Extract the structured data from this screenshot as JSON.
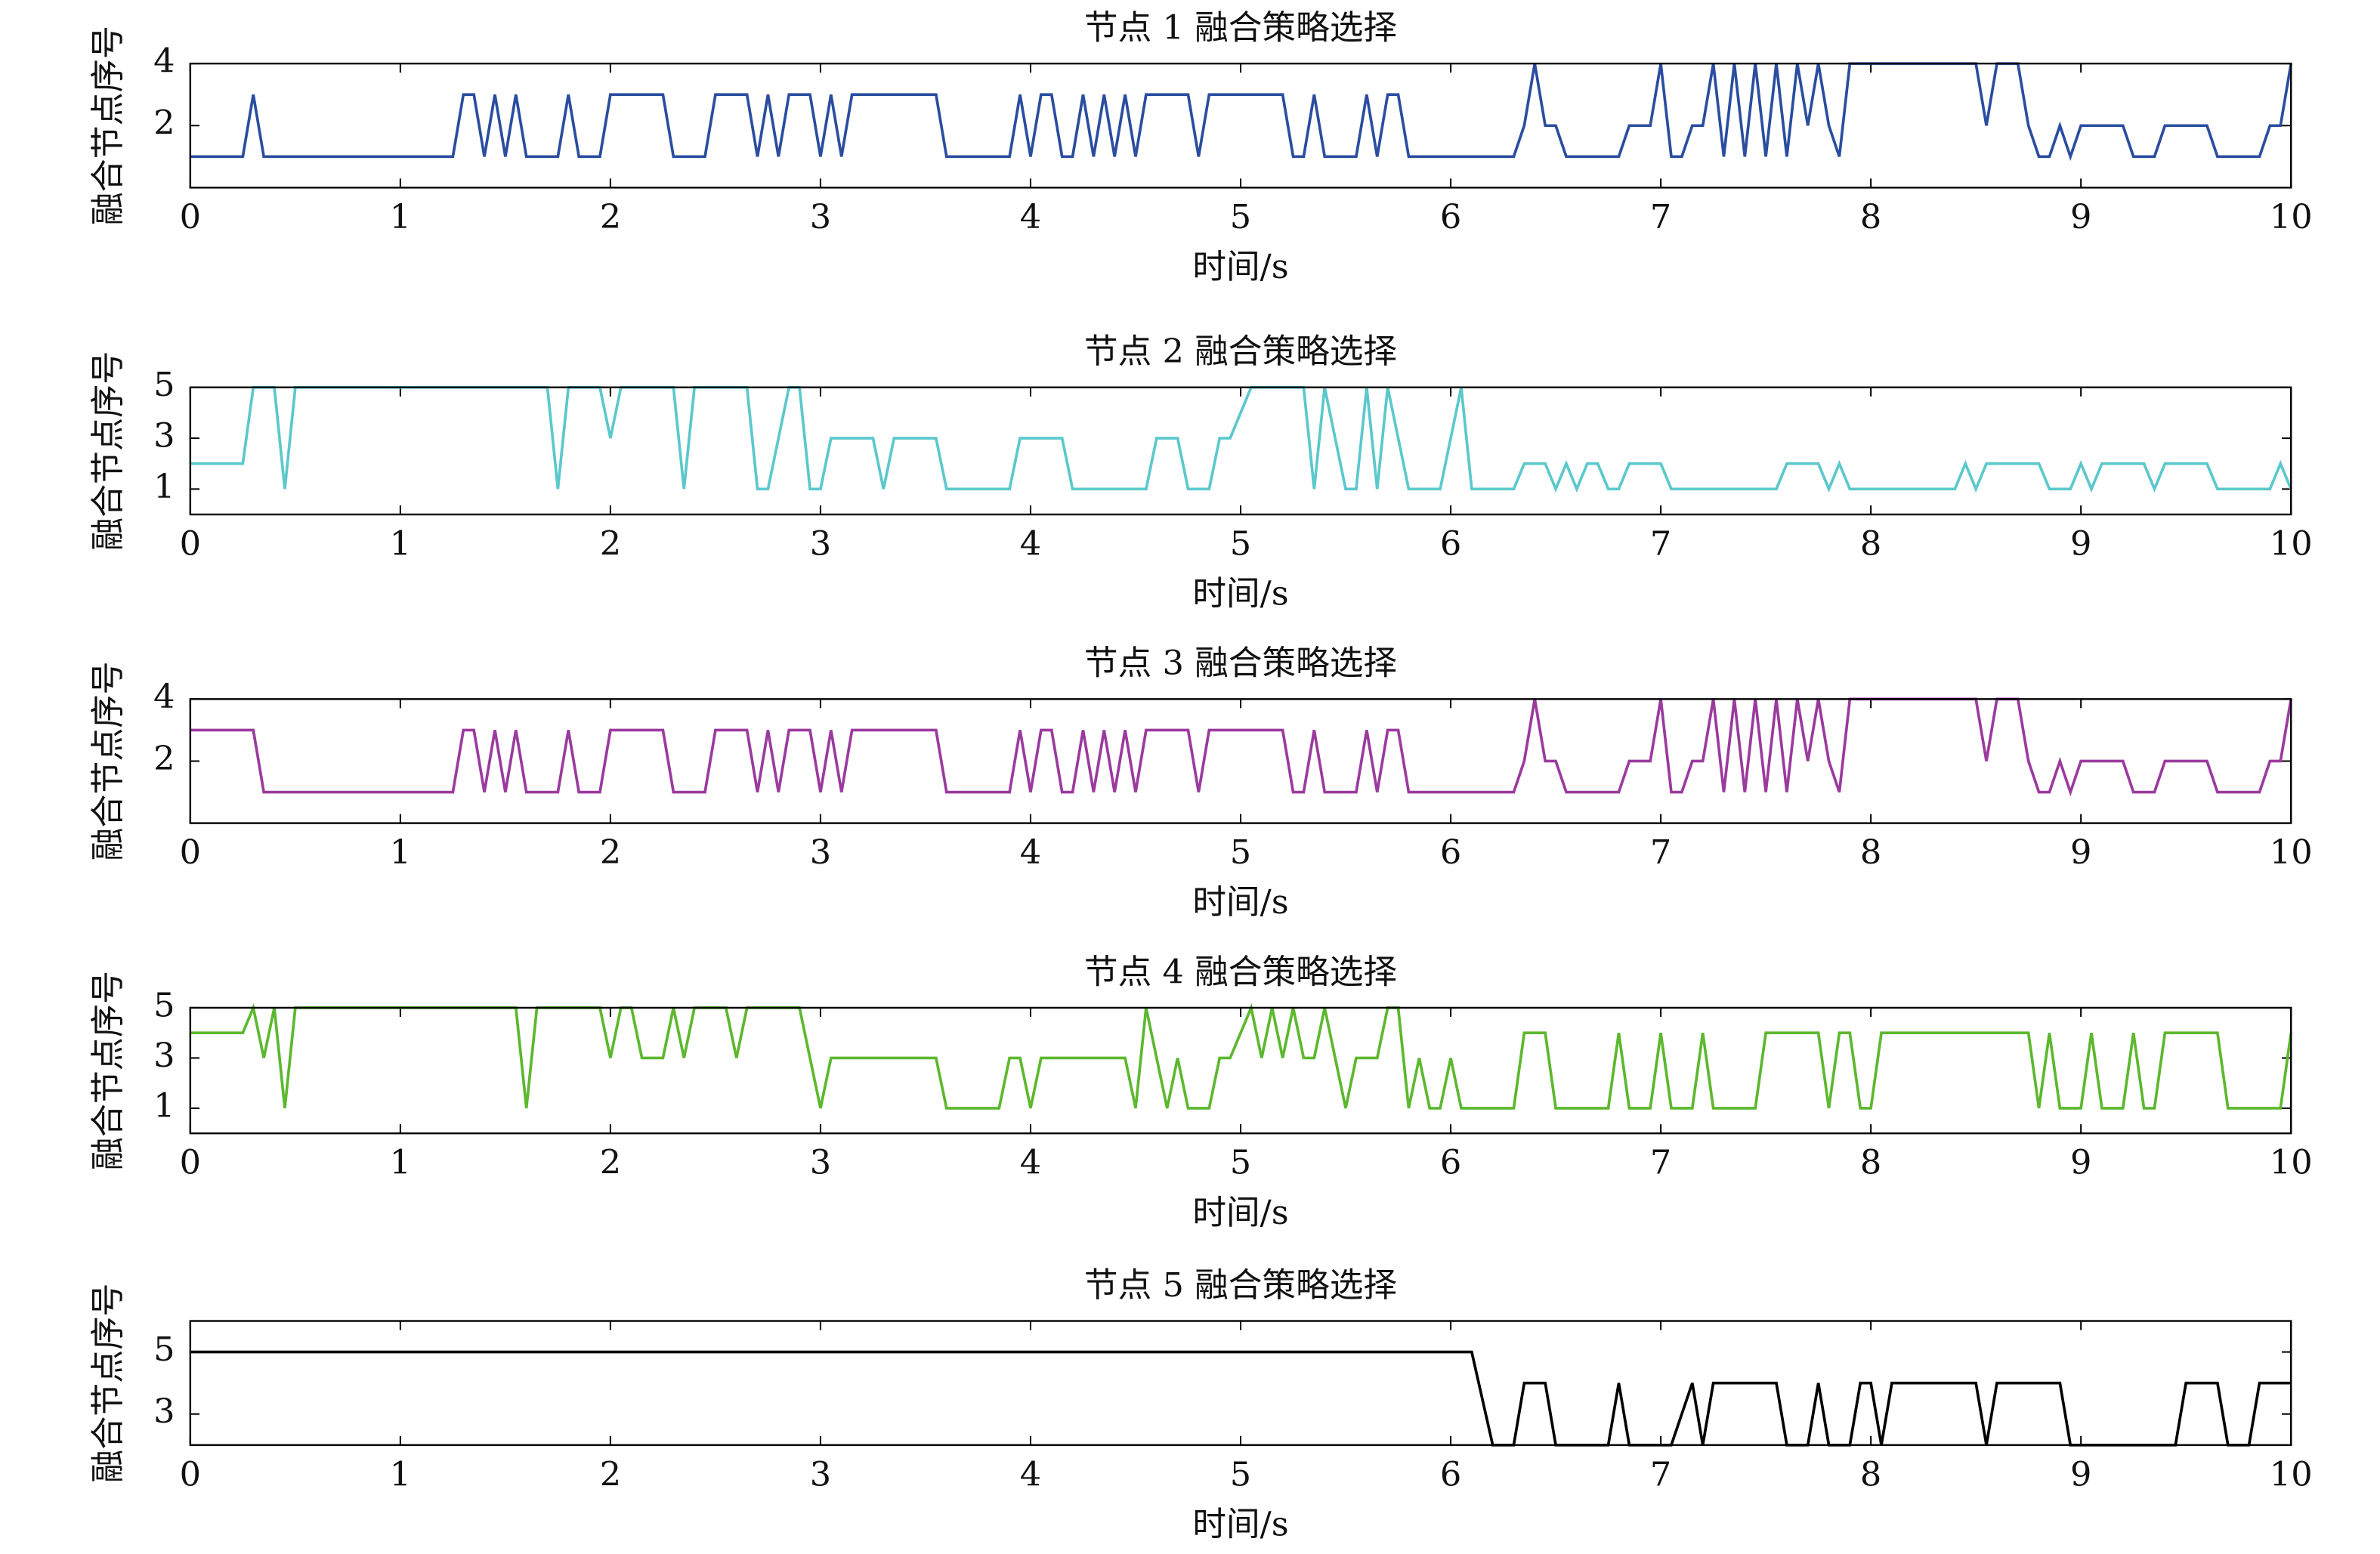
{
  "chart_data": [
    {
      "type": "line",
      "title": "节点 1 融合策略选择",
      "xlabel": "时间/s",
      "ylabel": "融合节点序号",
      "color": "#2a4da0",
      "xlim": [
        0,
        10
      ],
      "xticks": [
        0,
        1,
        2,
        3,
        4,
        5,
        6,
        7,
        8,
        9,
        10
      ],
      "ylim": [
        0,
        4
      ],
      "yticks": [
        2,
        4
      ],
      "x": [
        0,
        0.25,
        0.3,
        0.35,
        1.25,
        1.3,
        1.35,
        1.4,
        1.45,
        1.5,
        1.55,
        1.6,
        1.75,
        1.8,
        1.85,
        1.95,
        2.0,
        2.25,
        2.3,
        2.45,
        2.5,
        2.65,
        2.7,
        2.75,
        2.8,
        2.85,
        2.95,
        3.0,
        3.05,
        3.1,
        3.15,
        3.55,
        3.6,
        3.9,
        3.95,
        4.0,
        4.05,
        4.1,
        4.15,
        4.2,
        4.25,
        4.3,
        4.35,
        4.4,
        4.45,
        4.5,
        4.55,
        4.75,
        4.8,
        4.85,
        5.2,
        5.25,
        5.3,
        5.35,
        5.4,
        5.55,
        5.6,
        5.65,
        5.7,
        5.75,
        5.8,
        6.3,
        6.35,
        6.4,
        6.45,
        6.5,
        6.55,
        6.8,
        6.85,
        6.95,
        7.0,
        7.05,
        7.1,
        7.15,
        7.2,
        7.25,
        7.3,
        7.35,
        7.4,
        7.45,
        7.5,
        7.55,
        7.6,
        7.65,
        7.7,
        7.75,
        7.8,
        7.85,
        7.9,
        8.5,
        8.55,
        8.6,
        8.7,
        8.75,
        8.8,
        8.85,
        8.9,
        8.95,
        9.0,
        9.2,
        9.25,
        9.35,
        9.4,
        9.6,
        9.65,
        9.85,
        9.9,
        9.95,
        10
      ],
      "values": [
        1,
        1,
        3,
        1,
        1,
        3,
        3,
        1,
        3,
        1,
        3,
        1,
        1,
        3,
        1,
        1,
        3,
        3,
        1,
        1,
        3,
        3,
        1,
        3,
        1,
        3,
        3,
        1,
        3,
        1,
        3,
        3,
        1,
        1,
        3,
        1,
        3,
        3,
        1,
        1,
        3,
        1,
        3,
        1,
        3,
        1,
        3,
        3,
        1,
        3,
        3,
        1,
        1,
        3,
        1,
        1,
        3,
        1,
        3,
        3,
        1,
        1,
        2,
        4,
        2,
        2,
        1,
        1,
        2,
        2,
        4,
        1,
        1,
        2,
        2,
        4,
        1,
        4,
        1,
        4,
        1,
        4,
        1,
        4,
        2,
        4,
        2,
        1,
        4,
        4,
        2,
        4,
        4,
        2,
        1,
        1,
        2,
        1,
        2,
        2,
        1,
        1,
        2,
        2,
        1,
        1,
        2,
        2,
        4
      ]
    },
    {
      "type": "line",
      "title": "节点 2 融合策略选择",
      "xlabel": "时间/s",
      "ylabel": "融合节点序号",
      "color": "#5bc8cc",
      "xlim": [
        0,
        10
      ],
      "xticks": [
        0,
        1,
        2,
        3,
        4,
        5,
        6,
        7,
        8,
        9,
        10
      ],
      "ylim": [
        0,
        5
      ],
      "yticks": [
        1,
        3,
        5
      ],
      "x": [
        0,
        0.25,
        0.3,
        0.4,
        0.45,
        0.5,
        1.7,
        1.75,
        1.8,
        1.95,
        2.0,
        2.05,
        2.3,
        2.35,
        2.4,
        2.65,
        2.7,
        2.75,
        2.85,
        2.9,
        2.95,
        3.0,
        3.05,
        3.25,
        3.3,
        3.35,
        3.55,
        3.6,
        3.9,
        3.95,
        4.15,
        4.2,
        4.55,
        4.6,
        4.7,
        4.75,
        4.85,
        4.9,
        4.95,
        5.05,
        5.3,
        5.35,
        5.4,
        5.5,
        5.55,
        5.6,
        5.65,
        5.7,
        5.8,
        5.95,
        6.05,
        6.1,
        6.3,
        6.35,
        6.45,
        6.5,
        6.55,
        6.6,
        6.65,
        6.7,
        6.75,
        6.8,
        6.85,
        7.0,
        7.05,
        7.55,
        7.6,
        7.75,
        7.8,
        7.85,
        7.9,
        8.4,
        8.45,
        8.5,
        8.55,
        8.8,
        8.85,
        8.95,
        9.0,
        9.05,
        9.1,
        9.3,
        9.35,
        9.4,
        9.6,
        9.65,
        9.9,
        9.95,
        10
      ],
      "values": [
        2,
        2,
        5,
        5,
        1,
        5,
        5,
        1,
        5,
        5,
        3,
        5,
        5,
        1,
        5,
        5,
        1,
        1,
        5,
        5,
        1,
        1,
        3,
        3,
        1,
        3,
        3,
        1,
        1,
        3,
        3,
        1,
        1,
        3,
        3,
        1,
        1,
        3,
        3,
        5,
        5,
        1,
        5,
        1,
        1,
        5,
        1,
        5,
        1,
        1,
        5,
        1,
        1,
        2,
        2,
        1,
        2,
        1,
        2,
        2,
        1,
        1,
        2,
        2,
        1,
        1,
        2,
        2,
        1,
        2,
        1,
        1,
        2,
        1,
        2,
        2,
        1,
        1,
        2,
        1,
        2,
        2,
        1,
        2,
        2,
        1,
        1,
        2,
        1
      ]
    },
    {
      "type": "line",
      "title": "节点 3 融合策略选择",
      "xlabel": "时间/s",
      "ylabel": "融合节点序号",
      "color": "#9b3a9e",
      "xlim": [
        0,
        10
      ],
      "xticks": [
        0,
        1,
        2,
        3,
        4,
        5,
        6,
        7,
        8,
        9,
        10
      ],
      "ylim": [
        0,
        4
      ],
      "yticks": [
        2,
        4
      ],
      "x": [
        0,
        0.25,
        0.3,
        0.35,
        1.25,
        1.3,
        1.35,
        1.4,
        1.45,
        1.5,
        1.55,
        1.6,
        1.75,
        1.8,
        1.85,
        1.95,
        2.0,
        2.25,
        2.3,
        2.45,
        2.5,
        2.65,
        2.7,
        2.75,
        2.8,
        2.85,
        2.95,
        3.0,
        3.05,
        3.1,
        3.15,
        3.55,
        3.6,
        3.9,
        3.95,
        4.0,
        4.05,
        4.1,
        4.15,
        4.2,
        4.25,
        4.3,
        4.35,
        4.4,
        4.45,
        4.5,
        4.55,
        4.75,
        4.8,
        4.85,
        5.2,
        5.25,
        5.3,
        5.35,
        5.4,
        5.55,
        5.6,
        5.65,
        5.7,
        5.75,
        5.8,
        6.3,
        6.35,
        6.4,
        6.45,
        6.5,
        6.55,
        6.8,
        6.85,
        6.95,
        7.0,
        7.05,
        7.1,
        7.15,
        7.2,
        7.25,
        7.3,
        7.35,
        7.4,
        7.45,
        7.5,
        7.55,
        7.6,
        7.65,
        7.7,
        7.75,
        7.8,
        7.85,
        7.9,
        8.5,
        8.55,
        8.6,
        8.7,
        8.75,
        8.8,
        8.85,
        8.9,
        8.95,
        9.0,
        9.2,
        9.25,
        9.35,
        9.4,
        9.6,
        9.65,
        9.85,
        9.9,
        9.95,
        10
      ],
      "values": [
        3,
        3,
        3,
        1,
        1,
        3,
        3,
        1,
        3,
        1,
        3,
        1,
        1,
        3,
        1,
        1,
        3,
        3,
        1,
        1,
        3,
        3,
        1,
        3,
        1,
        3,
        3,
        1,
        3,
        1,
        3,
        3,
        1,
        1,
        3,
        1,
        3,
        3,
        1,
        1,
        3,
        1,
        3,
        1,
        3,
        1,
        3,
        3,
        1,
        3,
        3,
        1,
        1,
        3,
        1,
        1,
        3,
        1,
        3,
        3,
        1,
        1,
        2,
        4,
        2,
        2,
        1,
        1,
        2,
        2,
        4,
        1,
        1,
        2,
        2,
        4,
        1,
        4,
        1,
        4,
        1,
        4,
        1,
        4,
        2,
        4,
        2,
        1,
        4,
        4,
        2,
        4,
        4,
        2,
        1,
        1,
        2,
        1,
        2,
        2,
        1,
        1,
        2,
        2,
        1,
        1,
        2,
        2,
        4
      ]
    },
    {
      "type": "line",
      "title": "节点 4 融合策略选择",
      "xlabel": "时间/s",
      "ylabel": "融合节点序号",
      "color": "#5cb82e",
      "xlim": [
        0,
        10
      ],
      "xticks": [
        0,
        1,
        2,
        3,
        4,
        5,
        6,
        7,
        8,
        9,
        10
      ],
      "ylim": [
        0,
        5
      ],
      "yticks": [
        1,
        3,
        5
      ],
      "x": [
        0,
        0.25,
        0.3,
        0.35,
        0.4,
        0.45,
        0.5,
        1.55,
        1.6,
        1.65,
        1.95,
        2.0,
        2.05,
        2.1,
        2.15,
        2.25,
        2.3,
        2.35,
        2.4,
        2.55,
        2.6,
        2.65,
        2.9,
        3.0,
        3.05,
        3.55,
        3.6,
        3.85,
        3.9,
        3.95,
        4.0,
        4.05,
        4.45,
        4.5,
        4.55,
        4.6,
        4.65,
        4.7,
        4.75,
        4.85,
        4.9,
        4.95,
        5.05,
        5.1,
        5.15,
        5.2,
        5.25,
        5.3,
        5.35,
        5.4,
        5.5,
        5.55,
        5.65,
        5.7,
        5.75,
        5.8,
        5.85,
        5.9,
        5.95,
        6.0,
        6.05,
        6.3,
        6.35,
        6.45,
        6.5,
        6.75,
        6.8,
        6.85,
        6.95,
        7.0,
        7.05,
        7.15,
        7.2,
        7.25,
        7.45,
        7.5,
        7.75,
        7.8,
        7.85,
        7.9,
        7.95,
        8.0,
        8.05,
        8.75,
        8.8,
        8.85,
        8.9,
        9.0,
        9.05,
        9.1,
        9.2,
        9.25,
        9.3,
        9.35,
        9.4,
        9.65,
        9.7,
        9.95,
        10
      ],
      "values": [
        4,
        4,
        5,
        3,
        5,
        1,
        5,
        5,
        1,
        5,
        5,
        3,
        5,
        5,
        3,
        3,
        5,
        3,
        5,
        5,
        3,
        5,
        5,
        1,
        3,
        3,
        1,
        1,
        3,
        3,
        1,
        3,
        3,
        1,
        5,
        3,
        1,
        3,
        1,
        1,
        3,
        3,
        5,
        3,
        5,
        3,
        5,
        3,
        3,
        5,
        1,
        3,
        3,
        5,
        5,
        1,
        3,
        1,
        1,
        3,
        1,
        1,
        4,
        4,
        1,
        1,
        4,
        1,
        1,
        4,
        1,
        1,
        4,
        1,
        1,
        4,
        4,
        1,
        4,
        4,
        1,
        1,
        4,
        4,
        1,
        4,
        1,
        1,
        4,
        1,
        1,
        4,
        1,
        1,
        4,
        4,
        1,
        1,
        4
      ]
    },
    {
      "type": "line",
      "title": "节点 5 融合策略选择",
      "xlabel": "时间/s",
      "ylabel": "融合节点序号",
      "color": "#000000",
      "xlim": [
        0,
        10
      ],
      "xticks": [
        0,
        1,
        2,
        3,
        4,
        5,
        6,
        7,
        8,
        9,
        10
      ],
      "ylim": [
        2,
        6
      ],
      "yticks": [
        3,
        5
      ],
      "x": [
        0,
        6.1,
        6.2,
        6.3,
        6.35,
        6.45,
        6.5,
        6.75,
        6.8,
        6.85,
        7.05,
        7.15,
        7.2,
        7.25,
        7.55,
        7.6,
        7.7,
        7.75,
        7.8,
        7.9,
        7.95,
        8.0,
        8.05,
        8.1,
        8.5,
        8.55,
        8.6,
        8.9,
        8.95,
        9.45,
        9.5,
        9.65,
        9.7,
        9.8,
        9.85,
        10
      ],
      "values": [
        5,
        5,
        2,
        2,
        4,
        4,
        2,
        2,
        4,
        2,
        2,
        4,
        2,
        4,
        4,
        2,
        2,
        4,
        2,
        2,
        4,
        4,
        2,
        4,
        4,
        2,
        4,
        4,
        2,
        2,
        4,
        4,
        2,
        2,
        4,
        4
      ]
    }
  ]
}
